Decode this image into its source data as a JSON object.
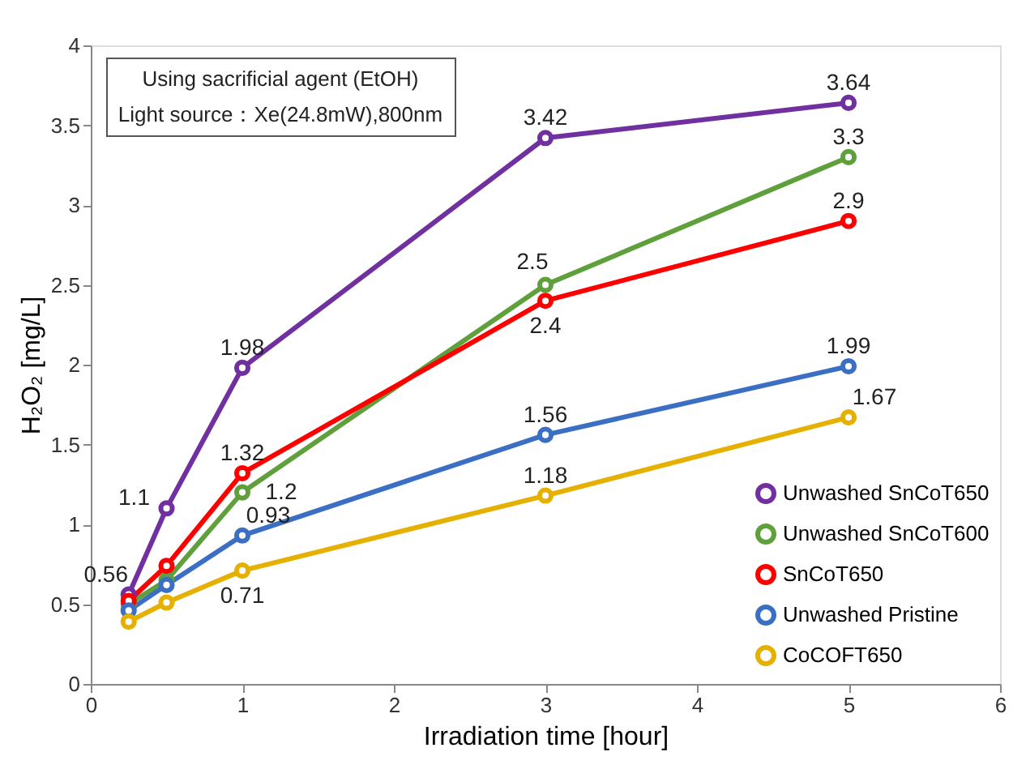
{
  "chart_data": {
    "type": "line",
    "xlabel": "Irradiation time [hour]",
    "ylabel": "H₂O₂  [mg/L]",
    "annotations": [
      "Using sacrificial agent (EtOH)",
      "Light source：Xe(24.8mW),800nm"
    ],
    "x": [
      0.25,
      0.5,
      1,
      3,
      5
    ],
    "xlim": [
      0,
      6
    ],
    "xticks": [
      0,
      1,
      2,
      3,
      4,
      5,
      6
    ],
    "ylim": [
      0,
      4
    ],
    "yticks": [
      0,
      0.5,
      1,
      1.5,
      2,
      2.5,
      3,
      3.5,
      4
    ],
    "grid": false,
    "legend": "bottom right",
    "marker": "circle",
    "line_style": "solid",
    "series": [
      {
        "name": "Unwashed SnCoT650",
        "color": "#7030a0",
        "values": [
          0.56,
          1.1,
          1.98,
          3.42,
          3.64
        ],
        "value_labels": [
          "0.56",
          "1.1",
          "1.98",
          "3.42",
          "3.64"
        ]
      },
      {
        "name": "Unwashed SnCoT600",
        "color": "#5fa03c",
        "values": [
          0.5,
          0.65,
          1.2,
          2.5,
          3.3
        ],
        "value_labels": [
          null,
          null,
          "1.2",
          "2.5",
          "3.3"
        ]
      },
      {
        "name": "SnCoT650",
        "color": "#ff0000",
        "values": [
          0.52,
          0.74,
          1.32,
          2.4,
          2.9
        ],
        "value_labels": [
          null,
          null,
          "1.32",
          "2.4",
          "2.9"
        ]
      },
      {
        "name": "Unwashed Pristine",
        "color": "#3a6fc4",
        "values": [
          0.46,
          0.62,
          0.93,
          1.56,
          1.99
        ],
        "value_labels": [
          null,
          null,
          "0.93",
          "1.56",
          "1.99"
        ]
      },
      {
        "name": "CoCOFT650",
        "color": "#e6b000",
        "values": [
          0.39,
          0.51,
          0.71,
          1.18,
          1.67
        ],
        "value_labels": [
          null,
          null,
          "0.71",
          "1.18",
          "1.67"
        ]
      }
    ]
  }
}
